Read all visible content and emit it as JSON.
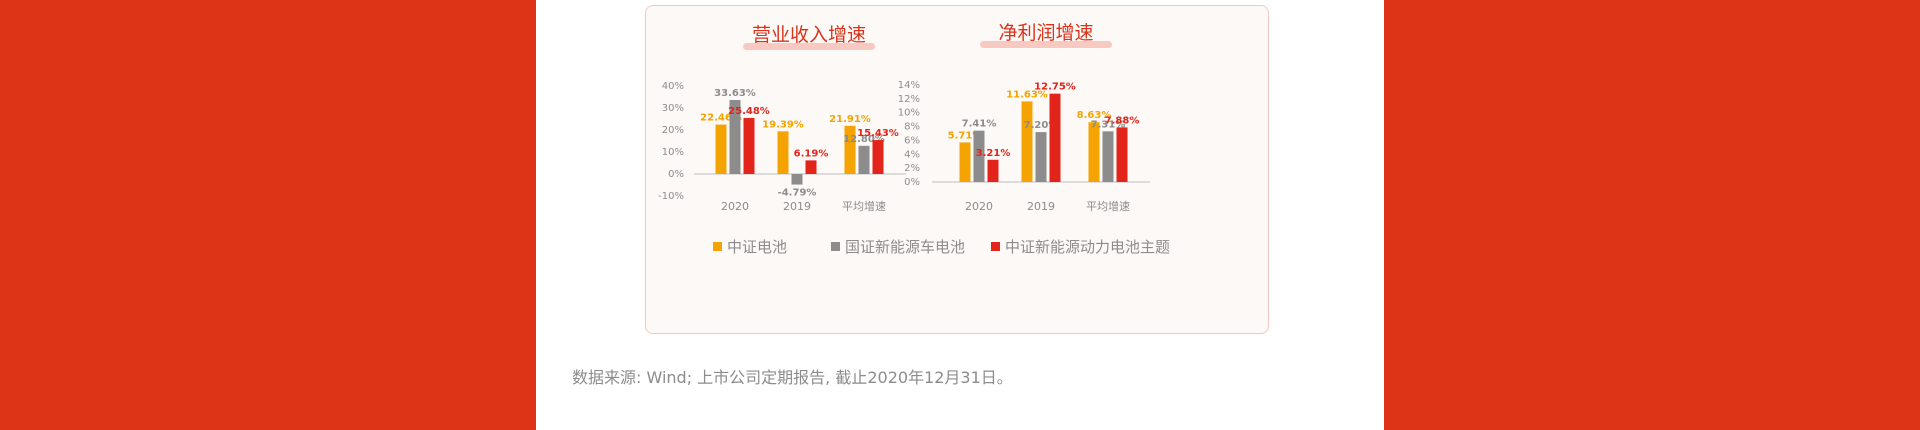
{
  "colors": {
    "series": [
      "#f5a300",
      "#8c8c8c",
      "#e3241b"
    ],
    "title_highlight": "#f8c9c1",
    "title_text": "#d9331c",
    "page_bg": "#dd3417"
  },
  "legend": [
    {
      "label": "中证电池",
      "color": "#f5a300"
    },
    {
      "label": "国证新能源车电池",
      "color": "#8c8c8c"
    },
    {
      "label": "中证新能源动力电池主题",
      "color": "#e3241b"
    }
  ],
  "chart_data": [
    {
      "type": "bar",
      "title": "营业收入增速",
      "categories": [
        "2020",
        "2019",
        "平均增速"
      ],
      "series": [
        {
          "name": "中证电池",
          "values": [
            22.46,
            19.39,
            21.91
          ],
          "labels": [
            "22.46%",
            "19.39%",
            "21.91%"
          ]
        },
        {
          "name": "国证新能源车电池",
          "values": [
            33.63,
            -4.79,
            12.8
          ],
          "labels": [
            "33.63%",
            "-4.79%",
            "12.80%"
          ]
        },
        {
          "name": "中证新能源动力电池主题",
          "values": [
            25.48,
            6.19,
            15.43
          ],
          "labels": [
            "25.48%",
            "6.19%",
            "15.43%"
          ]
        }
      ],
      "ylim": [
        -10,
        40
      ],
      "yticks": [
        -10,
        0,
        10,
        20,
        30,
        40
      ],
      "ytick_labels": [
        "-10%",
        "0%",
        "10%",
        "20%",
        "30%",
        "40%"
      ],
      "grid": false
    },
    {
      "type": "bar",
      "title": "净利润增速",
      "categories": [
        "2020",
        "2019",
        "平均增速"
      ],
      "series": [
        {
          "name": "中证电池",
          "values": [
            5.71,
            11.63,
            8.63
          ],
          "labels": [
            "5.71%",
            "11.63%",
            "8.63%"
          ]
        },
        {
          "name": "国证新能源车电池",
          "values": [
            7.41,
            7.2,
            7.31
          ],
          "labels": [
            "7.41%",
            "7.20%",
            "7.31%"
          ]
        },
        {
          "name": "中证新能源动力电池主题",
          "values": [
            3.21,
            12.75,
            7.88
          ],
          "labels": [
            "3.21%",
            "12.75%",
            "7.88%"
          ]
        }
      ],
      "ylim": [
        0,
        14
      ],
      "yticks": [
        0,
        2,
        4,
        6,
        8,
        10,
        12,
        14
      ],
      "ytick_labels": [
        "0%",
        "2%",
        "4%",
        "6%",
        "8%",
        "10%",
        "12%",
        "14%"
      ],
      "grid": false
    }
  ],
  "source_note": "数据来源: Wind; 上市公司定期报告, 截止2020年12月31日。"
}
